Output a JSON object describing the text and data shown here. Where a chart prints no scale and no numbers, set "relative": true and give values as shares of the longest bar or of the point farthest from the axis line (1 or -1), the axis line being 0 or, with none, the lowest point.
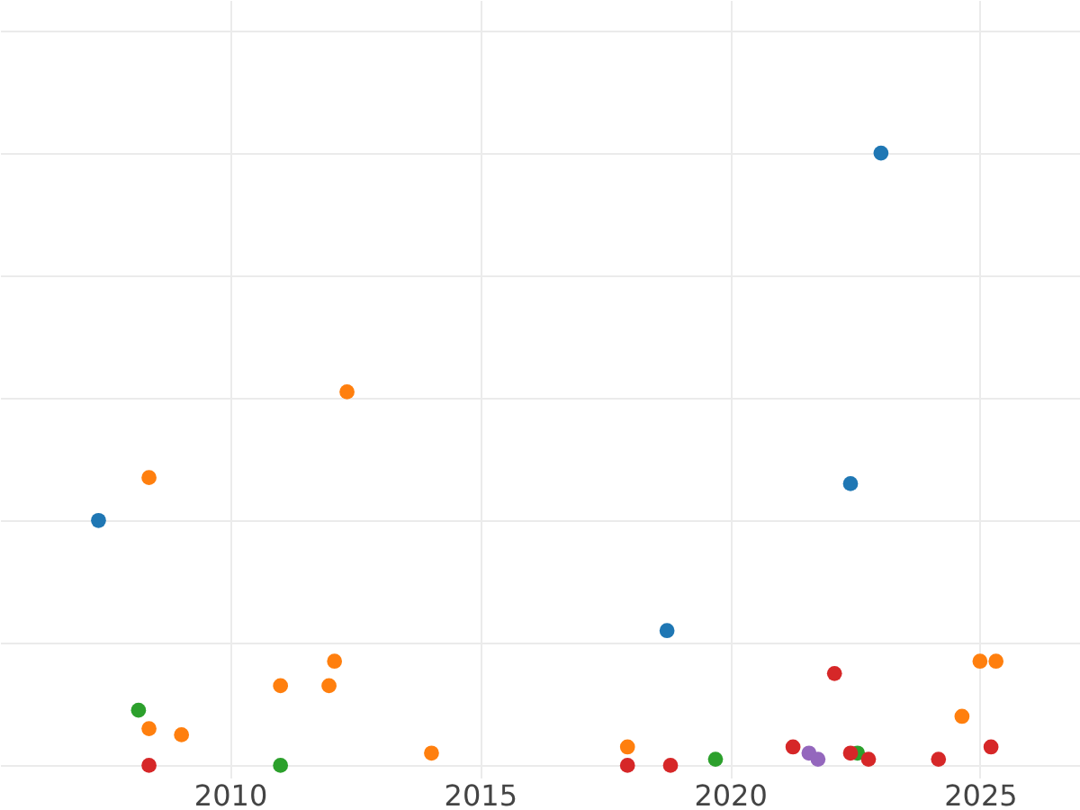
{
  "chart_data": {
    "type": "scatter",
    "relative": true,
    "xlim": [
      2005.4,
      2027
    ],
    "xticks": [
      2010,
      2015,
      2020,
      2025
    ],
    "grid": true,
    "tick_labels": "x",
    "marker": "circle",
    "legend": false,
    "series": [
      {
        "color": "#1f77b4",
        "x": [
          2007.37,
          2023.02,
          2022.41,
          2018.74
        ],
        "values": [
          0.4,
          1.0,
          0.46,
          0.22
        ]
      },
      {
        "color": "#ff7f0e",
        "x": [
          2008.38,
          2012.34,
          2008.38,
          2009.03,
          2011.01,
          2012.09,
          2011.98,
          2014.03,
          2017.95,
          2024.64,
          2025.0,
          2025.32
        ],
        "values": [
          0.47,
          0.61,
          0.06,
          0.05,
          0.13,
          0.17,
          0.13,
          0.02,
          0.03,
          0.08,
          0.17,
          0.17
        ]
      },
      {
        "color": "#2ca02c",
        "x": [
          2008.17,
          2011.01,
          2019.71,
          2022.55
        ],
        "values": [
          0.09,
          0.0,
          0.01,
          0.02
        ]
      },
      {
        "color": "#d62728",
        "x": [
          2008.38,
          2017.95,
          2018.81,
          2021.26,
          2022.09,
          2022.41,
          2022.77,
          2024.17,
          2025.22
        ],
        "values": [
          0.0,
          0.0,
          0.0,
          0.03,
          0.15,
          0.02,
          0.01,
          0.01,
          0.03
        ]
      },
      {
        "color": "#9467bd",
        "x": [
          2021.58,
          2021.76
        ],
        "values": [
          0.02,
          0.01
        ]
      }
    ]
  }
}
